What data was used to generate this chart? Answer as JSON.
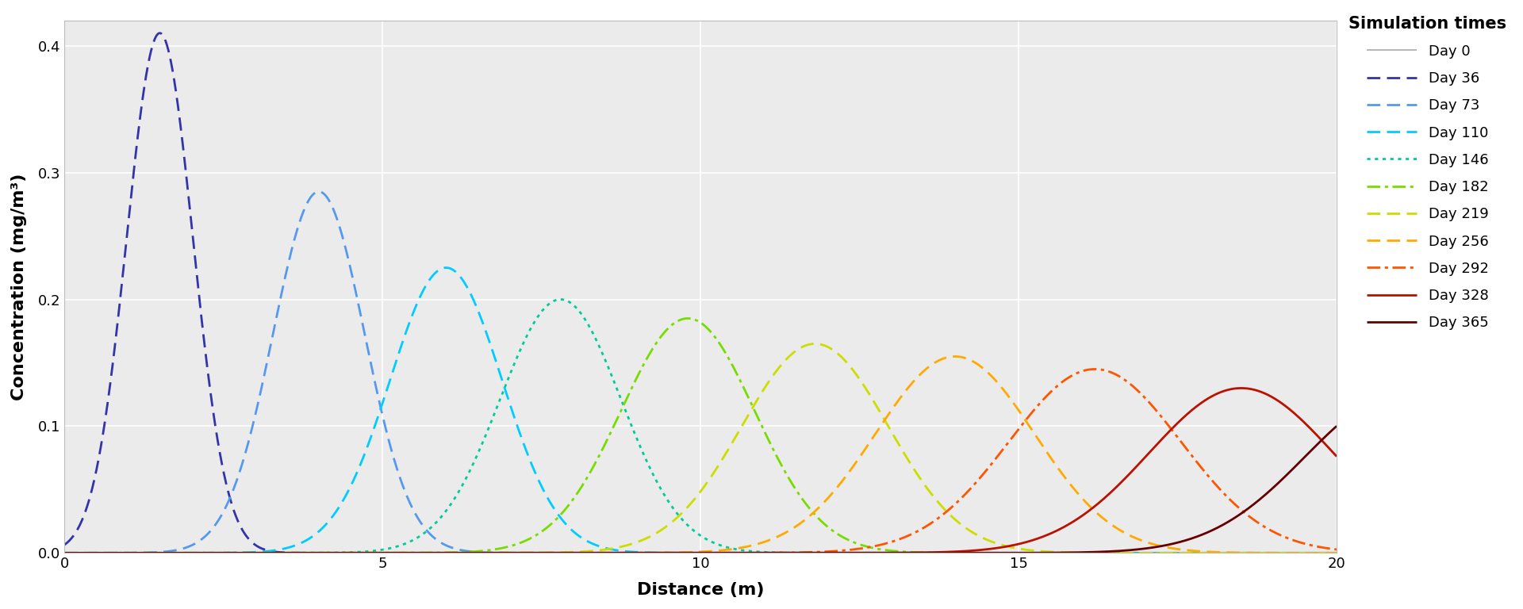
{
  "title": "",
  "xlabel": "Distance (m)",
  "ylabel": "Concentration (mg/m³)",
  "legend_title": "Simulation times",
  "xlim": [
    0,
    20
  ],
  "ylim": [
    -0.005,
    0.42
  ],
  "yticks": [
    0.0,
    0.1,
    0.2,
    0.3,
    0.4
  ],
  "xticks": [
    0,
    5,
    10,
    15,
    20
  ],
  "background_color": "#ffffff",
  "panel_background": "#ebebeb",
  "grid_color": "#ffffff",
  "series": [
    {
      "label": "Day 0",
      "color": "#aaaaaa",
      "linestyle": "solid",
      "linewidth": 1.2,
      "peak": 0.0,
      "mu": 0.0,
      "sigma": 0.3
    },
    {
      "label": "Day 36",
      "color": "#3333aa",
      "linestyle": "dashed",
      "linewidth": 2.0,
      "peak": 0.41,
      "mu": 1.5,
      "sigma": 0.52
    },
    {
      "label": "Day 73",
      "color": "#5599ee",
      "linestyle": "dashed",
      "linewidth": 2.0,
      "peak": 0.285,
      "mu": 4.0,
      "sigma": 0.72
    },
    {
      "label": "Day 110",
      "color": "#00ccff",
      "linestyle": "dashed",
      "linewidth": 2.0,
      "peak": 0.225,
      "mu": 6.0,
      "sigma": 0.88
    },
    {
      "label": "Day 146",
      "color": "#00cc99",
      "linestyle": "dotted",
      "linewidth": 2.0,
      "peak": 0.2,
      "mu": 7.8,
      "sigma": 0.95
    },
    {
      "label": "Day 182",
      "color": "#77dd00",
      "linestyle": "dashdot",
      "linewidth": 2.0,
      "peak": 0.185,
      "mu": 9.8,
      "sigma": 1.05
    },
    {
      "label": "Day 219",
      "color": "#ccdd00",
      "linestyle": "dashed",
      "linewidth": 2.0,
      "peak": 0.165,
      "mu": 11.8,
      "sigma": 1.15
    },
    {
      "label": "Day 256",
      "color": "#ffaa00",
      "linestyle": "dashed",
      "linewidth": 2.0,
      "peak": 0.155,
      "mu": 14.0,
      "sigma": 1.25
    },
    {
      "label": "Day 292",
      "color": "#ff5500",
      "linestyle": "dashdot",
      "linewidth": 2.0,
      "peak": 0.145,
      "mu": 16.2,
      "sigma": 1.35
    },
    {
      "label": "Day 328",
      "color": "#bb1100",
      "linestyle": "solid",
      "linewidth": 2.0,
      "peak": 0.13,
      "mu": 18.5,
      "sigma": 1.45
    },
    {
      "label": "Day 365",
      "color": "#660000",
      "linestyle": "solid",
      "linewidth": 2.0,
      "peak": 0.125,
      "mu": 21.0,
      "sigma": 1.5
    }
  ]
}
